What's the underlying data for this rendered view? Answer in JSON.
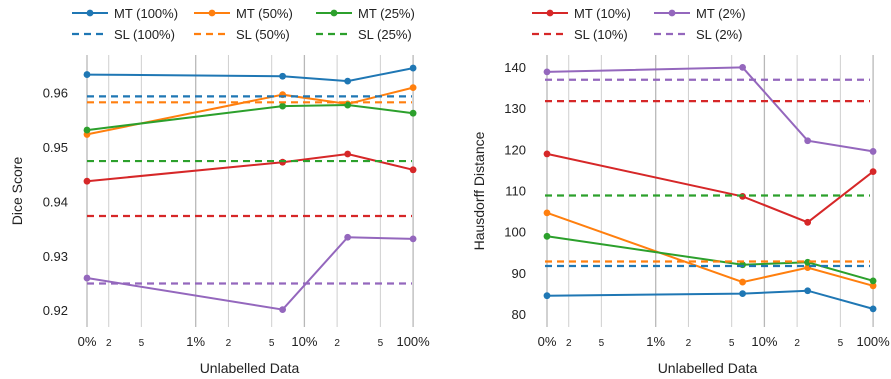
{
  "chart_data": [
    {
      "type": "line",
      "xlabel": "Unlabelled Data",
      "ylabel": "Dice Score",
      "xscale": "symlog",
      "x_tick_labels": [
        "0%",
        "2",
        "5",
        "1%",
        "2",
        "5",
        "10%",
        "2",
        "5",
        "100%"
      ],
      "y_ticks": [
        "0.92",
        "0.93",
        "0.94",
        "0.95",
        "0.96"
      ],
      "ylim": [
        0.917,
        0.967
      ],
      "grid": "vertical",
      "legend": {
        "placement": "top",
        "rows": [
          [
            "MT (100%)",
            "MT (50%)",
            "MT (25%)"
          ],
          [
            "SL  (100%)",
            "SL  (50%)",
            "SL  (25%)"
          ]
        ]
      },
      "series": [
        {
          "name": "MT (100%)",
          "style": "solid-marker",
          "color": "#1f77b4",
          "points": [
            [
              0,
              0.9634
            ],
            [
              0.063,
              0.9631
            ],
            [
              0.25,
              0.9622
            ],
            [
              1.0,
              0.9646
            ]
          ]
        },
        {
          "name": "MT (50%)",
          "style": "solid-marker",
          "color": "#ff7f0e",
          "points": [
            [
              0,
              0.9524
            ],
            [
              0.063,
              0.9597
            ],
            [
              0.25,
              0.958
            ],
            [
              1.0,
              0.961
            ]
          ]
        },
        {
          "name": "MT (25%)",
          "style": "solid-marker",
          "color": "#2ca02c",
          "points": [
            [
              0,
              0.9532
            ],
            [
              0.063,
              0.9576
            ],
            [
              0.25,
              0.9578
            ],
            [
              1.0,
              0.9563
            ]
          ]
        },
        {
          "name": "MT (10%)",
          "style": "solid-marker",
          "color": "#d62728",
          "points": [
            [
              0,
              0.9438
            ],
            [
              0.063,
              0.9473
            ],
            [
              0.25,
              0.9488
            ],
            [
              1.0,
              0.9459
            ]
          ]
        },
        {
          "name": "MT (2%)",
          "style": "solid-marker",
          "color": "#9467bd",
          "points": [
            [
              0,
              0.926
            ],
            [
              0.063,
              0.9202
            ],
            [
              0.25,
              0.9335
            ],
            [
              1.0,
              0.9332
            ]
          ]
        },
        {
          "name": "SL  (100%)",
          "style": "dashed",
          "color": "#1f77b4",
          "value": 0.9594
        },
        {
          "name": "SL  (50%)",
          "style": "dashed",
          "color": "#ff7f0e",
          "value": 0.9583
        },
        {
          "name": "SL  (25%)",
          "style": "dashed",
          "color": "#2ca02c",
          "value": 0.9475
        },
        {
          "name": "SL  (10%)",
          "style": "dashed",
          "color": "#d62728",
          "value": 0.9374
        },
        {
          "name": "SL  (2%)",
          "style": "dashed",
          "color": "#9467bd",
          "value": 0.925
        }
      ]
    },
    {
      "type": "line",
      "xlabel": "Unlabelled Data",
      "ylabel": "Hausdorff Distance",
      "xscale": "symlog",
      "x_tick_labels": [
        "0%",
        "2",
        "5",
        "1%",
        "2",
        "5",
        "10%",
        "2",
        "5",
        "100%"
      ],
      "y_ticks": [
        "80",
        "90",
        "100",
        "110",
        "120",
        "130",
        "140"
      ],
      "ylim": [
        77,
        143
      ],
      "grid": "vertical",
      "legend": {
        "placement": "top",
        "rows": [
          [
            "MT (10%)",
            "MT (2%)"
          ],
          [
            "SL  (10%)",
            "SL  (2%)"
          ]
        ]
      },
      "series": [
        {
          "name": "MT (100%)",
          "style": "solid-marker",
          "color": "#1f77b4",
          "points": [
            [
              0,
              84.6
            ],
            [
              0.063,
              85.1
            ],
            [
              0.25,
              85.8
            ],
            [
              1.0,
              81.4
            ]
          ]
        },
        {
          "name": "MT (50%)",
          "style": "solid-marker",
          "color": "#ff7f0e",
          "points": [
            [
              0,
              104.7
            ],
            [
              0.063,
              87.9
            ],
            [
              0.25,
              91.4
            ],
            [
              1.0,
              87.0
            ]
          ]
        },
        {
          "name": "MT (25%)",
          "style": "solid-marker",
          "color": "#2ca02c",
          "points": [
            [
              0,
              99.0
            ],
            [
              0.063,
              92.1
            ],
            [
              0.25,
              92.7
            ],
            [
              1.0,
              88.2
            ]
          ]
        },
        {
          "name": "MT (10%)",
          "style": "solid-marker",
          "color": "#d62728",
          "points": [
            [
              0,
              119.0
            ],
            [
              0.063,
              108.7
            ],
            [
              0.25,
              102.4
            ],
            [
              1.0,
              114.7
            ]
          ]
        },
        {
          "name": "MT (2%)",
          "style": "solid-marker",
          "color": "#9467bd",
          "points": [
            [
              0,
              138.9
            ],
            [
              0.063,
              140.0
            ],
            [
              0.25,
              122.2
            ],
            [
              1.0,
              119.6
            ]
          ]
        },
        {
          "name": "SL  (100%)",
          "style": "dashed",
          "color": "#1f77b4",
          "value": 91.8
        },
        {
          "name": "SL  (50%)",
          "style": "dashed",
          "color": "#ff7f0e",
          "value": 92.9
        },
        {
          "name": "SL  (25%)",
          "style": "dashed",
          "color": "#2ca02c",
          "value": 108.9
        },
        {
          "name": "SL  (10%)",
          "style": "dashed",
          "color": "#d62728",
          "value": 131.8
        },
        {
          "name": "SL  (2%)",
          "style": "dashed",
          "color": "#9467bd",
          "value": 137.0
        }
      ]
    }
  ]
}
